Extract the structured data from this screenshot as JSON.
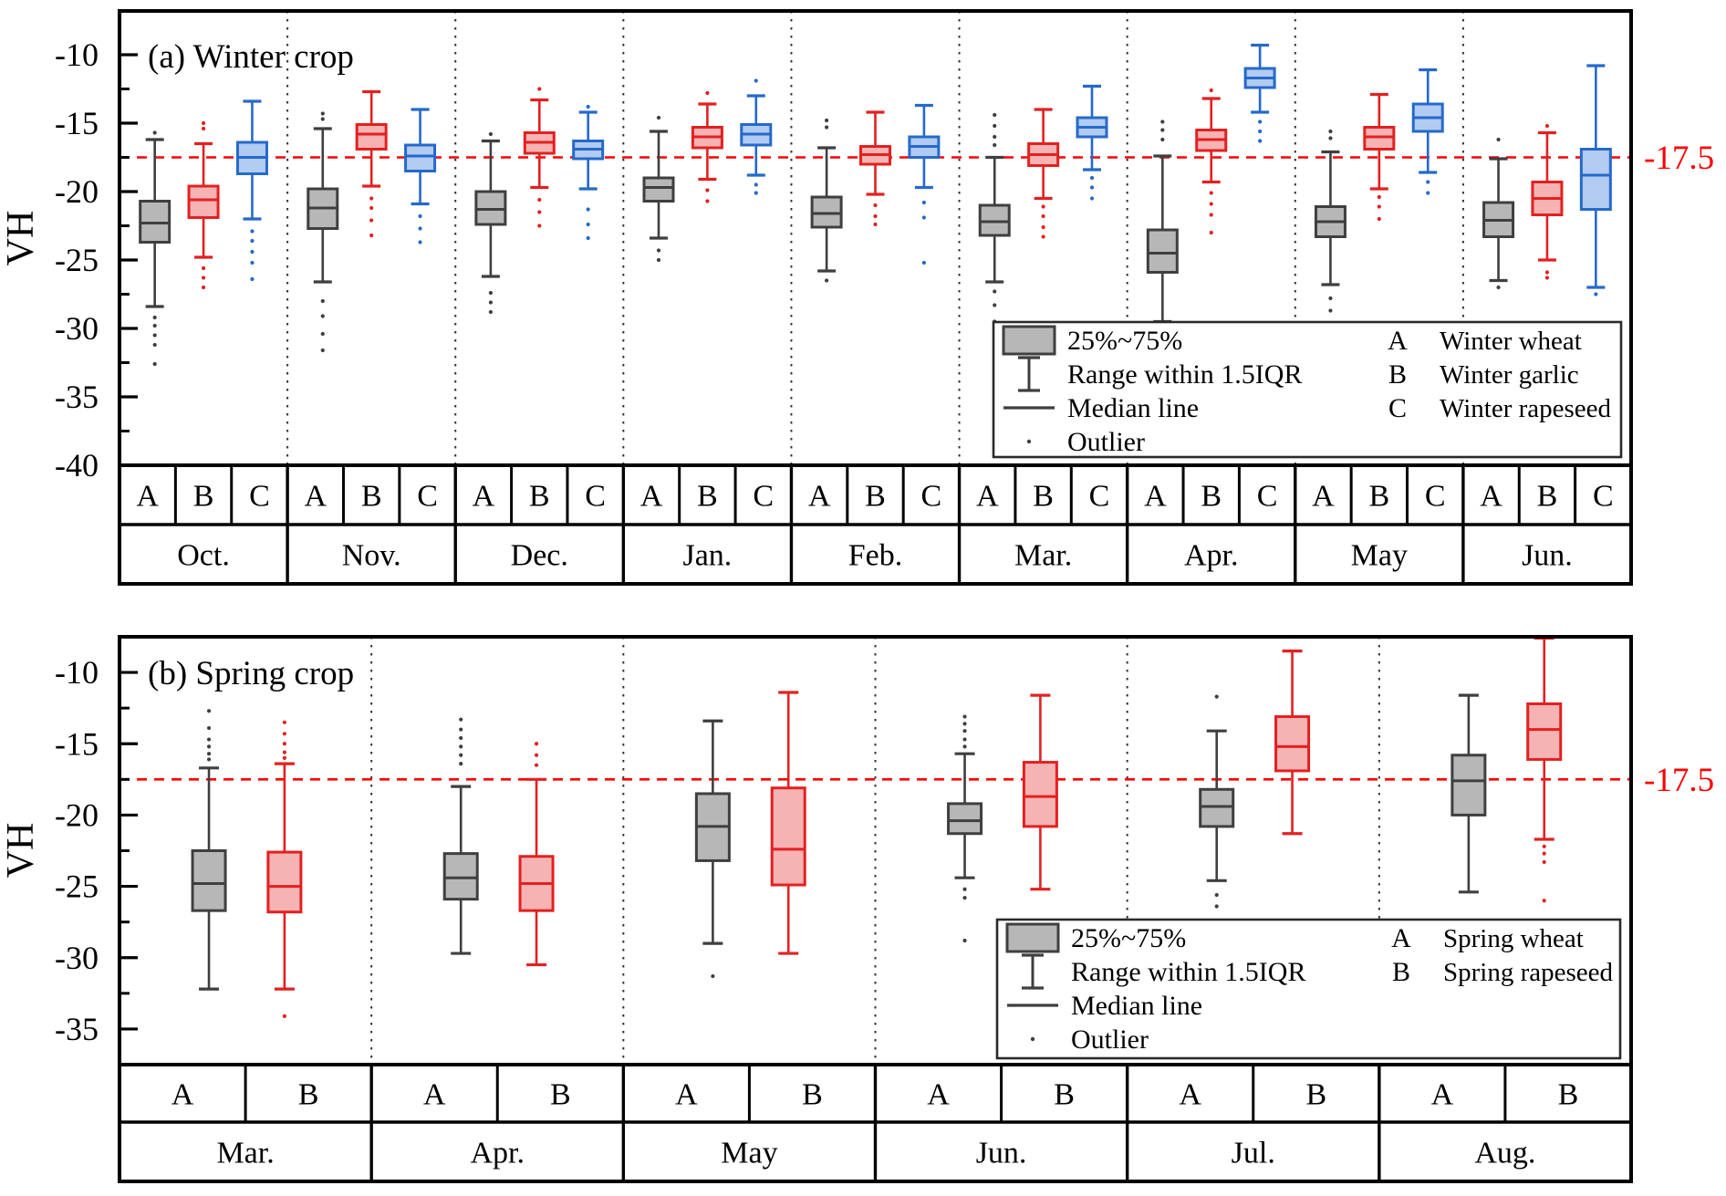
{
  "figure": {
    "background": "#ffffff",
    "ylabel": "VH"
  },
  "colors": {
    "gray": {
      "fill": "#b7b7b7",
      "stroke": "#3f3f3f"
    },
    "red": {
      "fill": "#f6b3b3",
      "stroke": "#e32020"
    },
    "blue": {
      "fill": "#b1ccf0",
      "stroke": "#2569cb"
    },
    "ref_line": "#fe0000",
    "axis": "#000000",
    "separator": "#333333"
  },
  "chart_data": [
    {
      "type": "boxplot",
      "panel": "a",
      "title": "(a) Winter crop",
      "ylabel": "VH",
      "ylim": [
        -40,
        -6.8
      ],
      "y_major_ticks": [
        -10,
        -15,
        -20,
        -25,
        -30,
        -35,
        -40
      ],
      "y_minor_ticks": [
        -12.5,
        -17.5,
        -22.5,
        -27.5,
        -32.5,
        -37.5
      ],
      "ref_line": {
        "value": -17.5,
        "label": "-17.5"
      },
      "grid": "dotted vertical separators between months",
      "legend_position": "inside bottom-right",
      "legend_stats": [
        {
          "glyph": "box-swatch",
          "label": "25%~75%"
        },
        {
          "glyph": "iqr-range",
          "label": "Range within 1.5IQR"
        },
        {
          "glyph": "median-line",
          "label": "Median line"
        },
        {
          "glyph": "outlier-dot",
          "label": "Outlier"
        }
      ],
      "groups": [
        {
          "key": "A",
          "name": "Winter wheat",
          "style": "gray"
        },
        {
          "key": "B",
          "name": "Winter garlic",
          "style": "red"
        },
        {
          "key": "C",
          "name": "Winter rapeseed",
          "style": "blue"
        }
      ],
      "months": [
        {
          "label": "Oct.",
          "boxes": [
            {
              "low": -28.4,
              "q1": -23.7,
              "median": -22.3,
              "q3": -20.7,
              "high": -16.2,
              "outliers_above": [
                -15.7
              ],
              "outliers_below": [
                -29.2,
                -29.8,
                -30.5,
                -31.2,
                -32.6
              ]
            },
            {
              "low": -24.8,
              "q1": -21.9,
              "median": -20.6,
              "q3": -19.6,
              "high": -16.5,
              "outliers_above": [
                -15.0,
                -15.4
              ],
              "outliers_below": [
                -25.6,
                -26.3,
                -27.0
              ]
            },
            {
              "low": -22.0,
              "q1": -18.7,
              "median": -17.5,
              "q3": -16.4,
              "high": -13.4,
              "outliers_above": [],
              "outliers_below": [
                -22.9,
                -23.6,
                -24.4,
                -25.2,
                -26.4
              ]
            }
          ]
        },
        {
          "label": "Nov.",
          "boxes": [
            {
              "low": -26.6,
              "q1": -22.7,
              "median": -21.2,
              "q3": -19.8,
              "high": -15.4,
              "outliers_above": [
                -14.3,
                -14.7
              ],
              "outliers_below": [
                -28.0,
                -29.1,
                -30.4,
                -31.6
              ]
            },
            {
              "low": -19.6,
              "q1": -16.9,
              "median": -15.8,
              "q3": -15.1,
              "high": -12.7,
              "outliers_above": [],
              "outliers_below": [
                -20.5,
                -21.2,
                -22.1,
                -23.2
              ]
            },
            {
              "low": -20.9,
              "q1": -18.5,
              "median": -17.4,
              "q3": -16.6,
              "high": -14.0,
              "outliers_above": [],
              "outliers_below": [
                -21.8,
                -22.7,
                -23.7
              ]
            }
          ]
        },
        {
          "label": "Dec.",
          "boxes": [
            {
              "low": -26.2,
              "q1": -22.4,
              "median": -21.3,
              "q3": -20.0,
              "high": -16.3,
              "outliers_above": [
                -15.8
              ],
              "outliers_below": [
                -27.4,
                -28.1,
                -28.8
              ]
            },
            {
              "low": -19.7,
              "q1": -17.2,
              "median": -16.4,
              "q3": -15.7,
              "high": -13.3,
              "outliers_above": [
                -12.5
              ],
              "outliers_below": [
                -20.6,
                -21.5,
                -22.5
              ]
            },
            {
              "low": -19.8,
              "q1": -17.6,
              "median": -16.9,
              "q3": -16.3,
              "high": -14.2,
              "outliers_above": [
                -13.8
              ],
              "outliers_below": [
                -21.3,
                -22.4,
                -23.4
              ]
            }
          ]
        },
        {
          "label": "Jan.",
          "boxes": [
            {
              "low": -23.4,
              "q1": -20.7,
              "median": -19.7,
              "q3": -19.0,
              "high": -15.6,
              "outliers_above": [
                -14.6
              ],
              "outliers_below": [
                -24.3,
                -25.0
              ]
            },
            {
              "low": -19.1,
              "q1": -16.8,
              "median": -16.0,
              "q3": -15.3,
              "high": -13.6,
              "outliers_above": [
                -12.8
              ],
              "outliers_below": [
                -19.9,
                -20.7
              ]
            },
            {
              "low": -18.8,
              "q1": -16.6,
              "median": -15.8,
              "q3": -15.1,
              "high": -13.0,
              "outliers_above": [
                -11.9
              ],
              "outliers_below": [
                -19.5,
                -20.1
              ]
            }
          ]
        },
        {
          "label": "Feb.",
          "boxes": [
            {
              "low": -25.8,
              "q1": -22.6,
              "median": -21.6,
              "q3": -20.4,
              "high": -16.8,
              "outliers_above": [
                -14.8,
                -15.3
              ],
              "outliers_below": [
                -26.5
              ]
            },
            {
              "low": -20.2,
              "q1": -18.0,
              "median": -17.3,
              "q3": -16.7,
              "high": -14.2,
              "outliers_above": [],
              "outliers_below": [
                -21.0,
                -21.8,
                -22.4
              ]
            },
            {
              "low": -19.7,
              "q1": -17.5,
              "median": -16.7,
              "q3": -16.0,
              "high": -13.7,
              "outliers_above": [],
              "outliers_below": [
                -20.8,
                -21.9,
                -25.2
              ]
            }
          ]
        },
        {
          "label": "Mar.",
          "boxes": [
            {
              "low": -26.6,
              "q1": -23.2,
              "median": -22.2,
              "q3": -21.0,
              "high": -17.5,
              "outliers_above": [
                -14.4,
                -15.2,
                -16.0,
                -16.6
              ],
              "outliers_below": [
                -27.3,
                -28.3,
                -29.5
              ]
            },
            {
              "low": -20.5,
              "q1": -18.1,
              "median": -17.3,
              "q3": -16.5,
              "high": -14.0,
              "outliers_above": [],
              "outliers_below": [
                -21.1,
                -21.8,
                -22.6,
                -23.3
              ]
            },
            {
              "low": -18.4,
              "q1": -16.0,
              "median": -15.3,
              "q3": -14.6,
              "high": -12.3,
              "outliers_above": [],
              "outliers_below": [
                -19.0,
                -19.7,
                -20.5
              ]
            }
          ]
        },
        {
          "label": "Apr.",
          "boxes": [
            {
              "low": -29.5,
              "q1": -25.9,
              "median": -24.5,
              "q3": -22.8,
              "high": -17.4,
              "outliers_above": [
                -14.9,
                -15.5,
                -16.2
              ],
              "outliers_below": [
                -30.6
              ]
            },
            {
              "low": -19.3,
              "q1": -17.0,
              "median": -16.2,
              "q3": -15.5,
              "high": -13.2,
              "outliers_above": [
                -12.6
              ],
              "outliers_below": [
                -20.1,
                -20.9,
                -21.7,
                -23.0
              ]
            },
            {
              "low": -14.2,
              "q1": -12.4,
              "median": -11.7,
              "q3": -11.0,
              "high": -9.3,
              "outliers_above": [],
              "outliers_below": [
                -14.9,
                -15.6,
                -16.3
              ]
            }
          ]
        },
        {
          "label": "May",
          "boxes": [
            {
              "low": -26.8,
              "q1": -23.3,
              "median": -22.2,
              "q3": -21.1,
              "high": -17.1,
              "outliers_above": [
                -15.6,
                -16.1
              ],
              "outliers_below": [
                -27.8,
                -28.7
              ]
            },
            {
              "low": -19.8,
              "q1": -16.9,
              "median": -16.0,
              "q3": -15.3,
              "high": -12.9,
              "outliers_above": [],
              "outliers_below": [
                -20.4,
                -21.1,
                -22.0
              ]
            },
            {
              "low": -18.6,
              "q1": -15.6,
              "median": -14.6,
              "q3": -13.6,
              "high": -11.1,
              "outliers_above": [],
              "outliers_below": [
                -19.3,
                -20.1
              ]
            }
          ]
        },
        {
          "label": "Jun.",
          "boxes": [
            {
              "low": -26.5,
              "q1": -23.3,
              "median": -22.1,
              "q3": -20.8,
              "high": -17.6,
              "outliers_above": [
                -16.2
              ],
              "outliers_below": [
                -27.0
              ]
            },
            {
              "low": -25.0,
              "q1": -21.7,
              "median": -20.5,
              "q3": -19.3,
              "high": -15.7,
              "outliers_above": [
                -15.2
              ],
              "outliers_below": [
                -25.9,
                -26.3
              ]
            },
            {
              "low": -27.0,
              "q1": -21.3,
              "median": -18.8,
              "q3": -16.9,
              "high": -10.8,
              "outliers_above": [],
              "outliers_below": [
                -27.5
              ]
            }
          ]
        }
      ]
    },
    {
      "type": "boxplot",
      "panel": "b",
      "title": "(b) Spring crop",
      "ylabel": "VH",
      "ylim": [
        -37.5,
        -7.5
      ],
      "y_major_ticks": [
        -10,
        -15,
        -20,
        -25,
        -30,
        -35
      ],
      "y_minor_ticks": [
        -12.5,
        -17.5,
        -22.5,
        -27.5,
        -32.5
      ],
      "ref_line": {
        "value": -17.5,
        "label": "-17.5"
      },
      "grid": "dotted vertical separators between months",
      "legend_position": "inside bottom-right",
      "legend_stats": [
        {
          "glyph": "box-swatch",
          "label": "25%~75%"
        },
        {
          "glyph": "iqr-range",
          "label": "Range within 1.5IQR"
        },
        {
          "glyph": "median-line",
          "label": "Median line"
        },
        {
          "glyph": "outlier-dot",
          "label": "Outlier"
        }
      ],
      "groups": [
        {
          "key": "A",
          "name": "Spring wheat",
          "style": "gray"
        },
        {
          "key": "B",
          "name": "Spring rapeseed",
          "style": "red"
        }
      ],
      "months": [
        {
          "label": "Mar.",
          "boxes": [
            {
              "low": -32.2,
              "q1": -26.7,
              "median": -24.8,
              "q3": -22.5,
              "high": -16.7,
              "outliers_above": [
                -12.7,
                -13.9,
                -14.7,
                -15.2,
                -15.7,
                -16.1
              ],
              "outliers_below": []
            },
            {
              "low": -32.2,
              "q1": -26.8,
              "median": -25.0,
              "q3": -22.6,
              "high": -16.4,
              "outliers_above": [
                -13.5,
                -14.3,
                -15.0,
                -15.6,
                -16.0
              ],
              "outliers_below": [
                -34.1
              ]
            }
          ]
        },
        {
          "label": "Apr.",
          "boxes": [
            {
              "low": -29.7,
              "q1": -25.9,
              "median": -24.4,
              "q3": -22.7,
              "high": -18.0,
              "outliers_above": [
                -13.3,
                -14.0,
                -14.6,
                -15.2,
                -15.8,
                -16.4
              ],
              "outliers_below": []
            },
            {
              "low": -30.5,
              "q1": -26.7,
              "median": -24.8,
              "q3": -22.9,
              "high": -17.5,
              "outliers_above": [
                -15.0,
                -15.8,
                -16.5
              ],
              "outliers_below": []
            }
          ]
        },
        {
          "label": "May",
          "boxes": [
            {
              "low": -29.0,
              "q1": -23.2,
              "median": -20.8,
              "q3": -18.5,
              "high": -13.4,
              "outliers_above": [],
              "outliers_below": [
                -31.3
              ]
            },
            {
              "low": -29.7,
              "q1": -24.9,
              "median": -22.4,
              "q3": -18.1,
              "high": -11.4,
              "outliers_above": [],
              "outliers_below": []
            }
          ]
        },
        {
          "label": "Jun.",
          "boxes": [
            {
              "low": -24.4,
              "q1": -21.3,
              "median": -20.4,
              "q3": -19.2,
              "high": -15.7,
              "outliers_above": [
                -13.1,
                -13.6,
                -14.1,
                -14.7,
                -15.2
              ],
              "outliers_below": [
                -25.2,
                -25.8,
                -28.8
              ]
            },
            {
              "low": -25.2,
              "q1": -20.8,
              "median": -18.7,
              "q3": -16.3,
              "high": -11.6,
              "outliers_above": [],
              "outliers_below": []
            }
          ]
        },
        {
          "label": "Jul.",
          "boxes": [
            {
              "low": -24.6,
              "q1": -20.8,
              "median": -19.4,
              "q3": -18.2,
              "high": -14.1,
              "outliers_above": [
                -11.7
              ],
              "outliers_below": [
                -25.6,
                -26.4,
                -27.7
              ]
            },
            {
              "low": -21.3,
              "q1": -16.9,
              "median": -15.2,
              "q3": -13.1,
              "high": -8.5,
              "outliers_above": [],
              "outliers_below": []
            }
          ]
        },
        {
          "label": "Aug.",
          "boxes": [
            {
              "low": -25.4,
              "q1": -20.0,
              "median": -17.6,
              "q3": -15.8,
              "high": -11.6,
              "outliers_above": [],
              "outliers_below": []
            },
            {
              "low": -21.7,
              "q1": -16.1,
              "median": -14.0,
              "q3": -12.2,
              "high": -7.6,
              "outliers_above": [],
              "outliers_below": [
                -22.2,
                -22.7,
                -23.3,
                -26.0
              ]
            }
          ]
        }
      ]
    }
  ]
}
